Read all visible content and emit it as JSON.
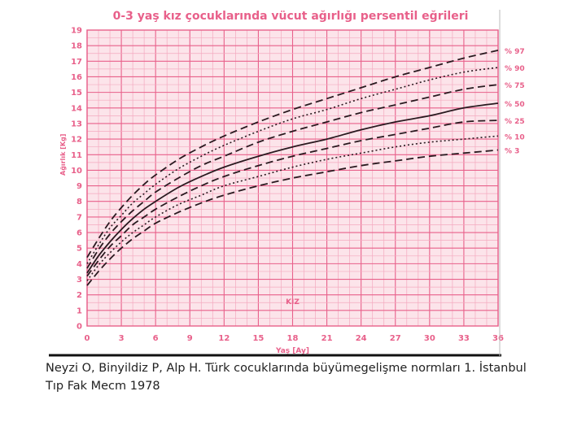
{
  "chart_data": {
    "type": "line",
    "title": "0-3 yaş kız çocuklarında vücut ağırlığı persentil eğrileri",
    "xlabel": "Yaş [Ay]",
    "ylabel": "Ağırlık [Kg]",
    "annotation": "KIZ",
    "xlim": [
      0,
      36
    ],
    "ylim": [
      0,
      19
    ],
    "xticks": [
      0,
      3,
      6,
      9,
      12,
      15,
      18,
      21,
      24,
      27,
      30,
      33,
      36
    ],
    "yticks": [
      0,
      1,
      2,
      3,
      4,
      5,
      6,
      7,
      8,
      9,
      10,
      11,
      12,
      13,
      14,
      15,
      16,
      17,
      18,
      19
    ],
    "grid": true,
    "colors": {
      "background": "#fce4ea",
      "grid": "#e8608a",
      "grid_minor": "#f4a9bf",
      "curve": "#2a1a20",
      "title": "#e8608a",
      "axis_text": "#e8608a"
    },
    "x": [
      0,
      1,
      2,
      3,
      4,
      5,
      6,
      8,
      10,
      12,
      15,
      18,
      21,
      24,
      27,
      30,
      33,
      36
    ],
    "series": [
      {
        "name": "% 97",
        "style": "dashed",
        "values": [
          4.4,
          5.6,
          6.7,
          7.6,
          8.4,
          9.1,
          9.7,
          10.7,
          11.5,
          12.2,
          13.1,
          13.9,
          14.6,
          15.3,
          16.0,
          16.6,
          17.2,
          17.7
        ]
      },
      {
        "name": "% 90",
        "style": "dotted",
        "values": [
          4.0,
          5.2,
          6.3,
          7.1,
          7.9,
          8.5,
          9.1,
          10.1,
          10.9,
          11.6,
          12.5,
          13.3,
          13.9,
          14.6,
          15.2,
          15.8,
          16.3,
          16.6
        ]
      },
      {
        "name": "% 75",
        "style": "dashed",
        "values": [
          3.7,
          4.9,
          5.9,
          6.7,
          7.4,
          8.0,
          8.6,
          9.5,
          10.3,
          10.9,
          11.8,
          12.5,
          13.1,
          13.7,
          14.2,
          14.7,
          15.2,
          15.5
        ]
      },
      {
        "name": "% 50",
        "style": "solid",
        "values": [
          3.4,
          4.5,
          5.4,
          6.2,
          6.9,
          7.5,
          8.0,
          8.9,
          9.6,
          10.2,
          10.9,
          11.5,
          12.0,
          12.6,
          13.1,
          13.5,
          14.0,
          14.3
        ]
      },
      {
        "name": "% 25",
        "style": "dashed",
        "values": [
          3.2,
          4.2,
          5.1,
          5.8,
          6.5,
          7.0,
          7.5,
          8.3,
          9.0,
          9.6,
          10.3,
          10.9,
          11.4,
          11.9,
          12.3,
          12.7,
          13.1,
          13.2
        ]
      },
      {
        "name": "% 10",
        "style": "dotted",
        "values": [
          2.9,
          3.9,
          4.7,
          5.4,
          6.0,
          6.5,
          7.0,
          7.8,
          8.4,
          9.0,
          9.6,
          10.2,
          10.7,
          11.1,
          11.5,
          11.8,
          12.0,
          12.2
        ]
      },
      {
        "name": "% 3",
        "style": "dashed",
        "values": [
          2.6,
          3.5,
          4.3,
          5.0,
          5.6,
          6.1,
          6.6,
          7.3,
          7.9,
          8.4,
          9.0,
          9.5,
          9.9,
          10.3,
          10.6,
          10.9,
          11.1,
          11.3
        ]
      }
    ]
  },
  "caption": {
    "line1": "Neyzi O, Binyildiz P, Alp H. Türk cocuklarında büyümegelişme normları 1. İstanbul",
    "line2": "Tıp Fak Mecm 1978"
  }
}
